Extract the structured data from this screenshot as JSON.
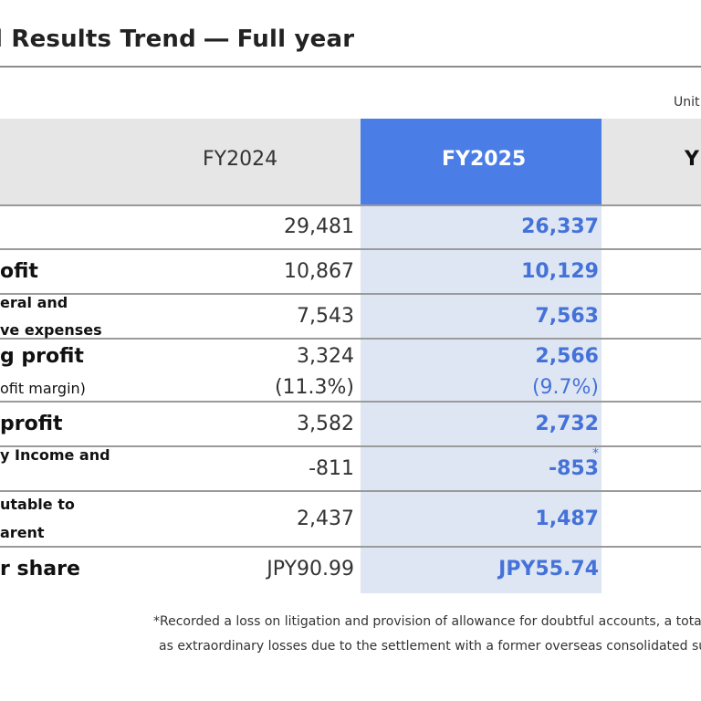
{
  "title": "l Results Trend ― Full year",
  "unit_note": "Unit",
  "table": {
    "headers": {
      "fy2024": "FY2024",
      "fy2025": "FY2025",
      "yoy": "Y"
    },
    "rows": [
      {
        "label": "",
        "fy2024": "29,481",
        "fy2025": "26,337"
      },
      {
        "label": "ofit",
        "fy2024": "10,867",
        "fy2025": "10,129"
      },
      {
        "label_line1": "eral and",
        "label_line2": "ve expenses",
        "fy2024": "7,543",
        "fy2025": "7,563"
      },
      {
        "label": "g profit",
        "fy2024": "3,324",
        "fy2025": "2,566",
        "sub_label": "ofit margin)",
        "sub_fy2024": "(11.3%)",
        "sub_fy2025": "(9.7%)"
      },
      {
        "label": "profit",
        "fy2024": "3,582",
        "fy2025": "2,732"
      },
      {
        "label_line1": "y Income and",
        "label_line2": "",
        "fy2024": "-811",
        "fy2025": "-853",
        "note_mark": "*"
      },
      {
        "label_line1": "utable to",
        "label_line2": "arent",
        "fy2024": "2,437",
        "fy2025": "1,487"
      },
      {
        "label": "r share",
        "fy2024": "JPY90.99",
        "fy2025": "JPY55.74"
      }
    ]
  },
  "footnote": {
    "line1": "*Recorded a loss on litigation and provision of allowance for doubtful accounts, a total c",
    "line2": "as extraordinary losses due to the settlement with a former overseas consolidated sub"
  },
  "colors": {
    "accent_header": "#4a7ee6",
    "accent_value": "#4472d9",
    "highlight_column": "#dfe6f3",
    "header_band": "#e6e6e6"
  }
}
